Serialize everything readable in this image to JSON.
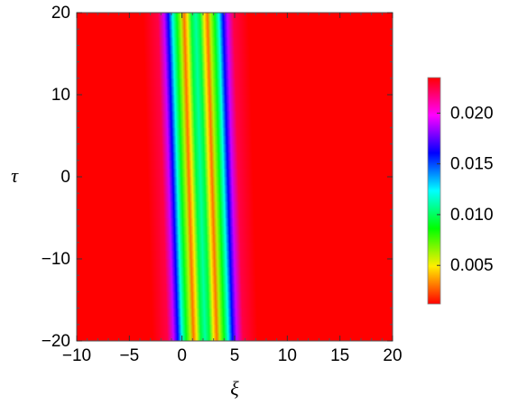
{
  "chart_data": {
    "type": "heatmap",
    "title": "",
    "xlabel": "ξ",
    "ylabel": "τ",
    "xlim": [
      -10,
      20
    ],
    "ylim": [
      -20,
      20
    ],
    "xticks": [
      -10,
      -5,
      0,
      5,
      10,
      15,
      20
    ],
    "xtick_labels": [
      "−10",
      "−5",
      "0",
      "5",
      "10",
      "15",
      "20"
    ],
    "yticks": [
      -20,
      -10,
      0,
      10,
      20
    ],
    "ytick_labels": [
      "−20",
      "−10",
      "0",
      "10",
      "20"
    ],
    "colorbar": {
      "range": [
        0.0012,
        0.0235
      ],
      "ticks": [
        0.005,
        0.01,
        0.015,
        0.02
      ],
      "tick_labels": [
        "0.005",
        "0.010",
        "0.015",
        "0.020"
      ],
      "colors": [
        "#ff0000",
        "#ffee00",
        "#00ff00",
        "#00ffff",
        "#0000ff",
        "#ff00ff",
        "#ff0000"
      ]
    },
    "field": {
      "description_free": true,
      "center_at_tau_minus20": 2.2,
      "center_at_tau_plus20": 1.3,
      "profile": [
        {
          "offset": -5.0,
          "value": 0.0235
        },
        {
          "offset": -3.6,
          "value": 0.0225
        },
        {
          "offset": -3.0,
          "value": 0.019
        },
        {
          "offset": -2.6,
          "value": 0.016
        },
        {
          "offset": -2.2,
          "value": 0.012
        },
        {
          "offset": -1.8,
          "value": 0.009
        },
        {
          "offset": -1.4,
          "value": 0.006
        },
        {
          "offset": -1.1,
          "value": 0.003
        },
        {
          "offset": -0.8,
          "value": 0.005
        },
        {
          "offset": -0.4,
          "value": 0.0095
        },
        {
          "offset": 0.0,
          "value": 0.011
        },
        {
          "offset": 0.4,
          "value": 0.0095
        },
        {
          "offset": 0.8,
          "value": 0.005
        },
        {
          "offset": 1.1,
          "value": 0.003
        },
        {
          "offset": 1.4,
          "value": 0.006
        },
        {
          "offset": 1.8,
          "value": 0.009
        },
        {
          "offset": 2.2,
          "value": 0.012
        },
        {
          "offset": 2.6,
          "value": 0.016
        },
        {
          "offset": 3.0,
          "value": 0.019
        },
        {
          "offset": 3.6,
          "value": 0.0225
        },
        {
          "offset": 5.0,
          "value": 0.0235
        }
      ]
    }
  }
}
